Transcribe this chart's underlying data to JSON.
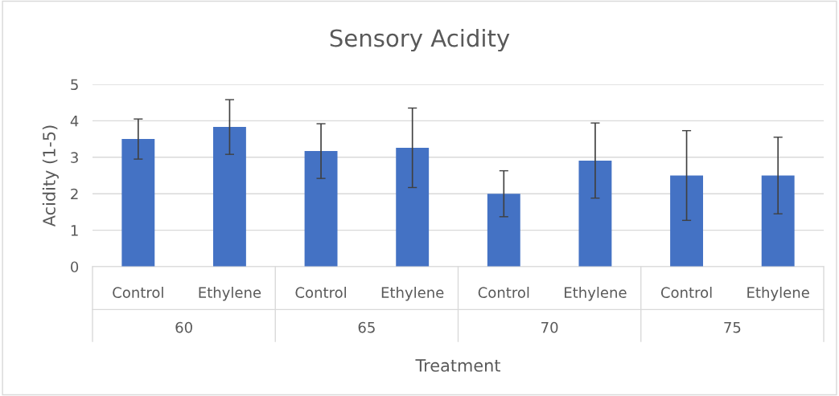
{
  "chart_data": {
    "type": "bar",
    "title": "Sensory Acidity",
    "xlabel": "Treatment",
    "ylabel": "Acidity (1-5)",
    "categories": [
      "Control",
      "Ethylene",
      "Control",
      "Ethylene",
      "Control",
      "Ethylene",
      "Control",
      "Ethylene"
    ],
    "values": [
      3.5,
      3.83,
      3.17,
      3.26,
      2.0,
      2.91,
      2.5,
      2.5
    ],
    "errors": [
      0.55,
      0.75,
      0.75,
      1.09,
      0.63,
      1.03,
      1.23,
      1.05
    ],
    "color": "#4472c4",
    "annotations": [
      "60",
      "65",
      "70",
      "75"
    ],
    "ylim": [
      0,
      5
    ],
    "yticks": [
      0,
      1,
      2,
      3,
      4,
      5
    ],
    "grid": "y"
  }
}
